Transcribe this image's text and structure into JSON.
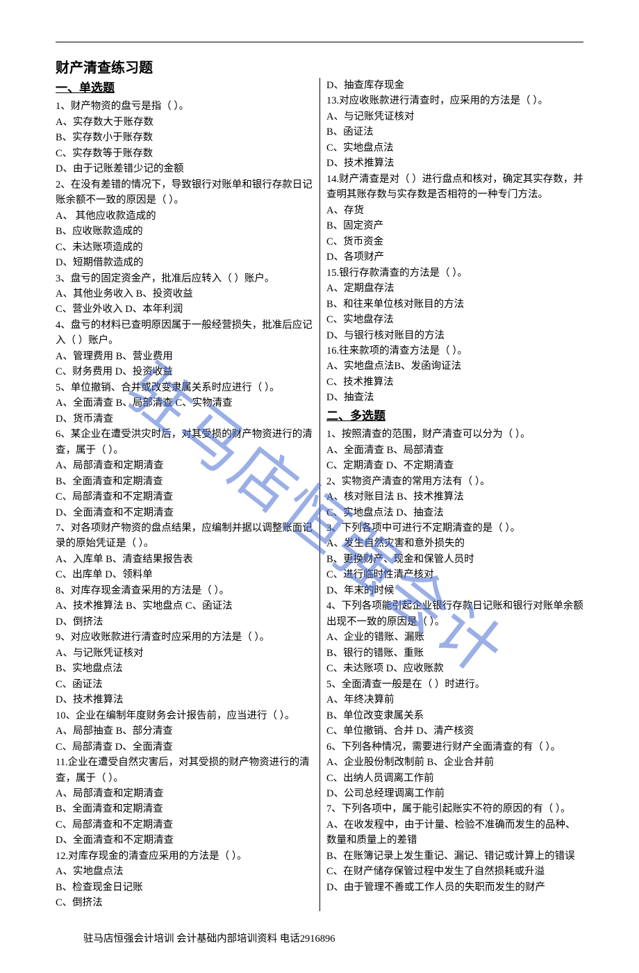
{
  "watermark": "驻马店恒强会计",
  "title": "财产清查练习题",
  "section1": "一、单选题",
  "section2": "二、多选题",
  "footer": "驻马店恒强会计培训        会计基础内部培训资料    电话2916896",
  "colors": {
    "text": "#000000",
    "watermark": "#4a6fd4",
    "background": "#ffffff"
  },
  "left": [
    "1、财产物资的盘亏是指（        ）。",
    "A、实存数大于账存数",
    "B、实存数小于账存数",
    "C、实存数等于账存数",
    "D、由于记账差错少记的金额",
    "2、在没有差错的情况下，导致银行对账单和银行存款日记账余额不一致的原因是（        ）。",
    "A、                                            其他应收款造成的",
    "B、应收账款造成的",
    "C、未达账项造成的",
    "D、短期借款造成的",
    "3、盘亏的固定资金产，批准后应转入（        ）账户。",
    "A、其他业务收入                        B、投资收益",
    "C、营业外收入                            D、本年利润",
    "4、盘亏的材料已查明原因属于一般经营损失，批准后应记入（            ）账户。",
    "A、管理费用                                B、营业费用",
    "C、财务费用        D、投资收益",
    "5、单位撤销、合并或改变隶属关系时应进行（        ）。",
    "A、全面清查        B、局部清查        C、实物清查",
    "D、货币清查",
    "6、某企业在遭受洪灾时后，对其受损的财产物资进行的清查，属于（        ）。",
    "A、局部清查和定期清查",
    "B、全面清查和定期清查",
    "C、局部清查和不定期清查",
    "D、全面清查和不定期清查",
    "7、对各项财产物资的盘点结果，应编制并据以调整账面记录的原始凭证是（        ）。",
    "A、入库单                                B、清查结果报告表",
    "C、出库单        D、领料单",
    "8、对库存现金清查采用的方法是（        ）。",
    "A、技术推算法        B、实地盘点        C、函证法",
    "D、倒挤法",
    "9、对应收账款进行清查时应采用的方法是（    ）。",
    "A、与记账凭证核对",
    "B、实地盘点法",
    "C、函证法",
    "D、技术推算法",
    "10、企业在编制年度财务会计报告前，应当进行（        ）。",
    "A、局部抽查                                    B、部分清查",
    "C、局部清查        D、全面清查",
    "11.企业在遭受自然灾害后，对其受损的财产物资进行的清查，属于（        ）。",
    "    A、局部清查和定期清查",
    "    B、全面清查和定期清查",
    "    C、局部清查和不定期清查",
    "    D、全面清查和不定期清查",
    "12.对库存现金的清查应采用的方法是（        ）。",
    "    A、实地盘点法",
    "    B、检查现金日记账",
    "    C、倒挤法"
  ],
  "right": [
    "    D、抽查库存现金",
    "13.对应收账款进行清查时，应采用的方法是（    ）。",
    "    A、与记账凭证核对",
    "    B、函证法",
    "    C、实地盘点法",
    "    D、技术推算法",
    "14.财产清查是对（                                                    ）进行盘点和核对，确定其实存数，并查明其账存数与实存数是否相符的一种专门方法。",
    "    A、存货",
    "    B、固定资产",
    "    C、货币资金",
    "    D、各项财产",
    "15.银行存款清查的方法是（            ）。",
    "    A、定期盘存法",
    "    B、和往来单位核对账目的方法",
    "    C、实地盘存法",
    "    D、与银行核对账目的方法",
    "16.往来款项的清查方法是（        ）。",
    "    A、实地盘点法B、发函询证法",
    "    C、技术推算法",
    "    D、抽查法"
  ],
  "multi": [
    "1、按照清查的范围，财产清查可以分为（        ）。",
    "A、全面清查                                    B、局部清查",
    "C、定期清查        D、不定期清查",
    "2、实物资产清查的常用方法有（            ）。",
    "A、核对账目法                                B、技术推算法",
    "C、实地盘点法        D、抽查法",
    "3、下列各项中可进行不定期清查的是（        ）。",
    "A、发生自然灾害和意外损失的",
    "B、更换财产、现金和保管人员时",
    "C、进行临时性清产核对",
    "D、年末的时候",
    "4、下列各项能引起企业银行存款日记账和银行对账单余额出现不一致的原因是（        ）。",
    "A、企业的错账、漏账",
    "B、银行的错账、重账",
    "C、未达账项                                D、应收账款",
    "5、全面清查一般是在（            ）时进行。",
    "A、年终决算前",
    "B、单位改变隶属关系",
    "C、单位撤销、合并                        D、清产核资",
    "6、下列各种情况，需要进行财产全面清查的有（    ）。",
    "A、企业股份制改制前                B、企业合并前",
    "C、出纳人员调离工作前",
    "D、公司总经理调离工作前",
    "7、下列各项中，属于能引起账实不符的原因的有（            ）。",
    "A、在收发程中，由于计量、检验不准确而发生的品种、数量和质量上的差错",
    "B、在账簿记录上发生重记、漏记、错记或计算上的错误",
    "C、在财产储存保管过程中发生了自然损耗或升溢",
    "D、由于管理不善或工作人员的失职而发生的财产"
  ]
}
